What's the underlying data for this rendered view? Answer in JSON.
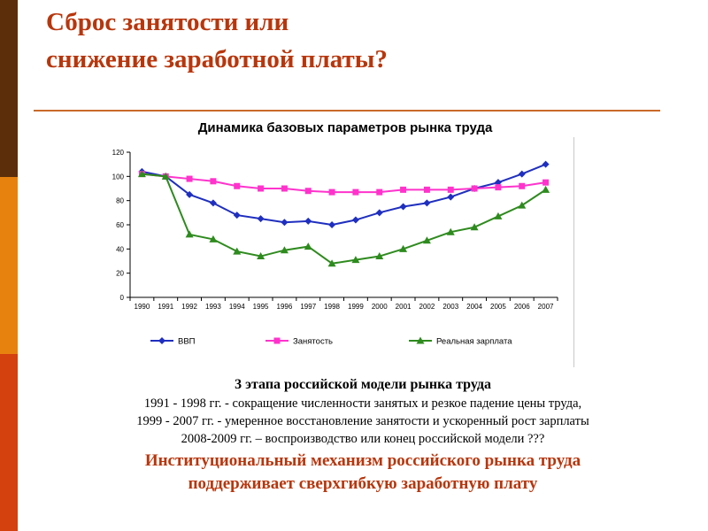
{
  "title": {
    "line1": "Сброс занятости или",
    "line2": "снижение заработной платы?"
  },
  "chart_data": {
    "type": "line",
    "title": "Динамика базовых параметров рынка труда",
    "x": [
      "1990",
      "1991",
      "1992",
      "1993",
      "1994",
      "1995",
      "1996",
      "1997",
      "1998",
      "1999",
      "2000",
      "2001",
      "2002",
      "2003",
      "2004",
      "2005",
      "2006",
      "2007"
    ],
    "ylim": [
      0,
      120
    ],
    "yticks": [
      0,
      20,
      40,
      60,
      80,
      100,
      120
    ],
    "grid": false,
    "legend": "bottom",
    "series": [
      {
        "name": "ВВП",
        "color": "#1f2fbf",
        "marker": "diamond",
        "values": [
          104,
          100,
          85,
          78,
          68,
          65,
          62,
          63,
          60,
          64,
          70,
          75,
          78,
          83,
          90,
          95,
          102,
          110
        ]
      },
      {
        "name": "Занятость",
        "color": "#ff33cc",
        "marker": "square",
        "values": [
          102,
          100,
          98,
          96,
          92,
          90,
          90,
          88,
          87,
          87,
          87,
          89,
          89,
          89,
          90,
          91,
          92,
          95
        ]
      },
      {
        "name": "Реальная зарплата",
        "color": "#2e8b1e",
        "marker": "triangle",
        "values": [
          102,
          100,
          52,
          48,
          38,
          34,
          39,
          42,
          28,
          31,
          34,
          40,
          47,
          54,
          58,
          67,
          76,
          89
        ]
      }
    ]
  },
  "text": {
    "subheading": "3 этапа российской модели рынка труда",
    "line1": "1991 - 1998 гг. - сокращение численности занятых и резкое падение цены труда,",
    "line2": "1999 - 2007 гг. - умеренное восстановление занятости и ускоренный рост зарплаты",
    "line3": "2008-2009 гг. – воспроизводство или конец российской модели ???",
    "conclusion1": "Институциональный механизм российского рынка труда",
    "conclusion2": "поддерживает сверхгибкую заработную плату"
  }
}
